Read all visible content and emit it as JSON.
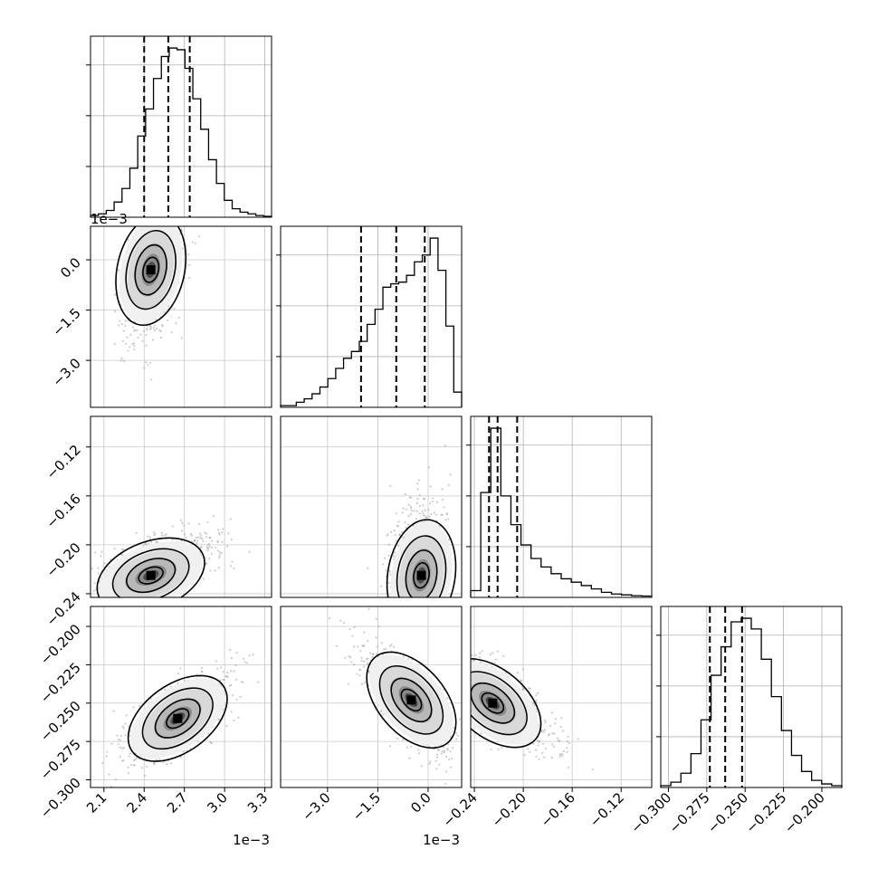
{
  "chart_data": {
    "type": "corner",
    "n_params": 4,
    "grid": true,
    "parameters": [
      {
        "range": [
          2.0,
          3.35
        ],
        "ticks": [
          2.1,
          2.4,
          2.7,
          3.0,
          3.3
        ],
        "tick_labels": [
          "2.1",
          "2.4",
          "2.7",
          "3.0",
          "3.3"
        ],
        "offset_label": "1e−3",
        "quantiles": [
          2.4,
          2.58,
          2.74
        ]
      },
      {
        "range": [
          -4.4,
          1.0
        ],
        "ticks": [
          -3.0,
          -1.5,
          0.0
        ],
        "tick_labels": [
          "−3.0",
          "−1.5",
          "0.0"
        ],
        "offset_label": "1e−3",
        "quantiles": [
          -2.0,
          -0.95,
          -0.1
        ]
      },
      {
        "range": [
          -0.243,
          -0.095
        ],
        "ticks": [
          -0.24,
          -0.2,
          -0.16,
          -0.12
        ],
        "tick_labels": [
          "−0.24",
          "−0.20",
          "−0.16",
          "−0.12"
        ],
        "offset_label": "",
        "quantiles": [
          -0.228,
          -0.221,
          -0.205
        ]
      },
      {
        "range": [
          -0.305,
          -0.187
        ],
        "ticks": [
          -0.3,
          -0.275,
          -0.25,
          -0.225,
          -0.2
        ],
        "tick_labels": [
          "−0.300",
          "−0.275",
          "−0.250",
          "−0.225",
          "−0.200"
        ],
        "offset_label": "",
        "quantiles": [
          -0.273,
          -0.263,
          -0.252
        ]
      }
    ],
    "histograms": [
      [
        1,
        2,
        4,
        9,
        17,
        29,
        48,
        64,
        82,
        95,
        100,
        99,
        88,
        70,
        52,
        34,
        20,
        10,
        5,
        3,
        2,
        1,
        0.5
      ],
      [
        1,
        1,
        3,
        5,
        8,
        12,
        17,
        23,
        29,
        33,
        39,
        49,
        58,
        71,
        73,
        74,
        78,
        86,
        90,
        100,
        81,
        48,
        9
      ],
      [
        4,
        62,
        100,
        60,
        43,
        31,
        23,
        18,
        14,
        11,
        9,
        7,
        5,
        3,
        2,
        1.5,
        1,
        0.8
      ],
      [
        1,
        3,
        8,
        19,
        38,
        63,
        79,
        93,
        95,
        89,
        72,
        51,
        32,
        18,
        9,
        4,
        2,
        1
      ]
    ],
    "pair_modes": [
      {
        "row": 1,
        "col": 0,
        "peak": [
          2.45,
          -0.3
        ]
      },
      {
        "row": 2,
        "col": 0,
        "peak": [
          2.45,
          -0.225
        ]
      },
      {
        "row": 2,
        "col": 1,
        "peak": [
          -0.2,
          -0.225
        ]
      },
      {
        "row": 3,
        "col": 0,
        "peak": [
          2.65,
          -0.26
        ]
      },
      {
        "row": 3,
        "col": 1,
        "peak": [
          -0.5,
          -0.248
        ]
      },
      {
        "row": 3,
        "col": 2,
        "peak": [
          -0.225,
          -0.25
        ]
      }
    ]
  }
}
